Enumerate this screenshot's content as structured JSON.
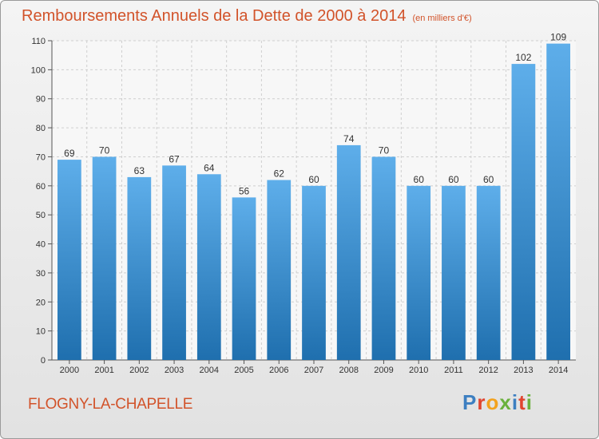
{
  "title": "Remboursements Annuels de la Dette de 2000 à 2014",
  "unit_label": "(en milliers d'€)",
  "town": "FLOGNY-LA-CHAPELLE",
  "logo": {
    "letters": [
      "P",
      "r",
      "o",
      "x",
      "i",
      "t",
      "i"
    ],
    "colors": [
      "#3d7fc1",
      "#e0442e",
      "#f3a21e",
      "#6ab13c",
      "#3d7fc1",
      "#e0442e",
      "#6ab13c"
    ]
  },
  "colors": {
    "title": "#d2532a",
    "bar_top": "#5eaeea",
    "bar_bottom": "#1f6fae",
    "grid": "#cfcfcf"
  },
  "chart_data": {
    "type": "bar",
    "title": "Remboursements Annuels de la Dette de 2000 à 2014",
    "ylabel": "en milliers d'€",
    "xlabel": "",
    "categories": [
      "2000",
      "2001",
      "2002",
      "2003",
      "2004",
      "2005",
      "2006",
      "2007",
      "2008",
      "2009",
      "2010",
      "2011",
      "2012",
      "2013",
      "2014"
    ],
    "values": [
      69,
      70,
      63,
      67,
      64,
      56,
      62,
      60,
      74,
      70,
      60,
      60,
      60,
      102,
      109
    ],
    "ylim": [
      0,
      110
    ],
    "yticks": [
      0,
      10,
      20,
      30,
      40,
      50,
      60,
      70,
      80,
      90,
      100,
      110
    ],
    "grid": true
  }
}
